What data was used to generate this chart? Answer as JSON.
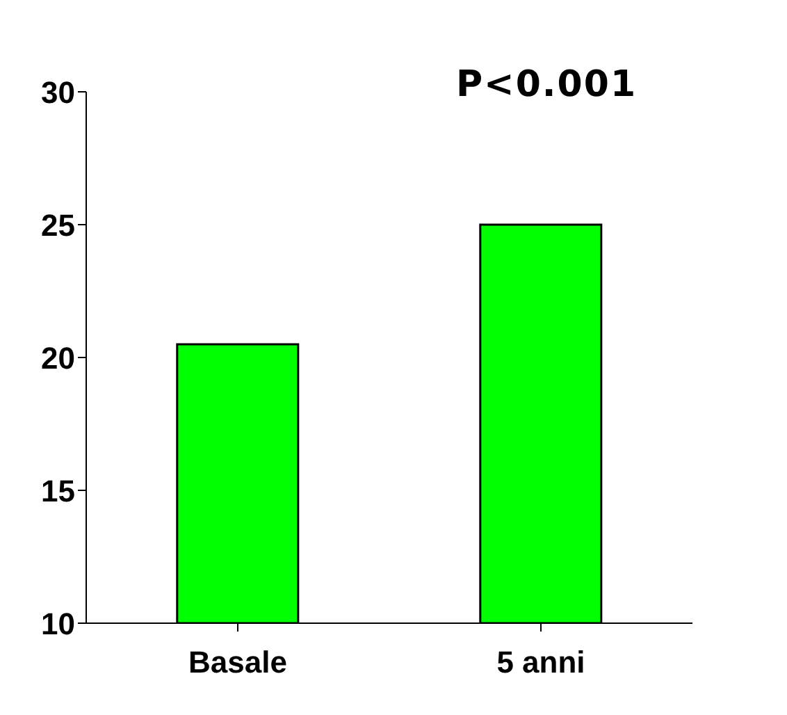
{
  "chart_data": {
    "type": "bar",
    "categories": [
      "Basale",
      "5 anni"
    ],
    "series": [
      {
        "color": "#00ff00",
        "values": [
          20.5,
          25
        ]
      }
    ],
    "ylim": [
      10,
      30
    ],
    "yticks": [
      10,
      15,
      20,
      25,
      30
    ],
    "annotations": [
      "P<0.001"
    ]
  }
}
